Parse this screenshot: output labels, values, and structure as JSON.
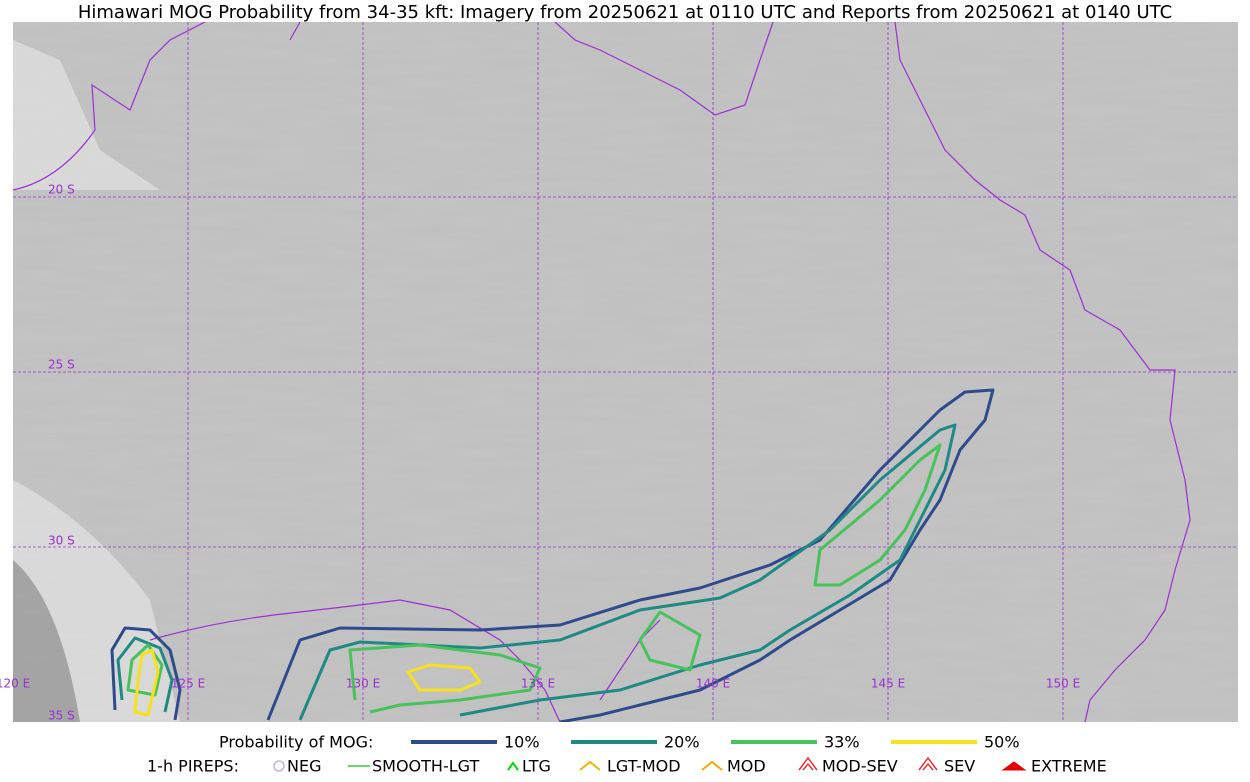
{
  "header": {
    "title": "Himawari MOG Probability from 34-35 kft: Imagery from 20250621 at 0110 UTC and Reports from 20250621 at 0140 UTC"
  },
  "map": {
    "lat_labels": [
      "20 S",
      "25 S",
      "30 S",
      "35 S"
    ],
    "lon_labels": [
      "120 E",
      "125 E",
      "130 E",
      "135 E",
      "140 E",
      "145 E",
      "150 E"
    ]
  },
  "legend": {
    "probability": {
      "title": "Probability of MOG:",
      "items": [
        {
          "label": "10%",
          "color": "#2f4b8c"
        },
        {
          "label": "20%",
          "color": "#1f8a84"
        },
        {
          "label": "33%",
          "color": "#48c25a"
        },
        {
          "label": "50%",
          "color": "#f5e11e"
        }
      ]
    },
    "pireps": {
      "title": "1-h PIREPS:",
      "items": [
        {
          "label": "NEG",
          "color": "#b8b8f0"
        },
        {
          "label": "SMOOTH-LGT",
          "color": "#33cc33"
        },
        {
          "label": "LTG",
          "color": "#00dd00"
        },
        {
          "label": "LGT-MOD",
          "color": "#f0b400"
        },
        {
          "label": "MOD",
          "color": "#f5a800"
        },
        {
          "label": "MOD-SEV",
          "color": "#e83030"
        },
        {
          "label": "SEV",
          "color": "#e83030"
        },
        {
          "label": "EXTREME",
          "color": "#e80000"
        }
      ]
    }
  }
}
